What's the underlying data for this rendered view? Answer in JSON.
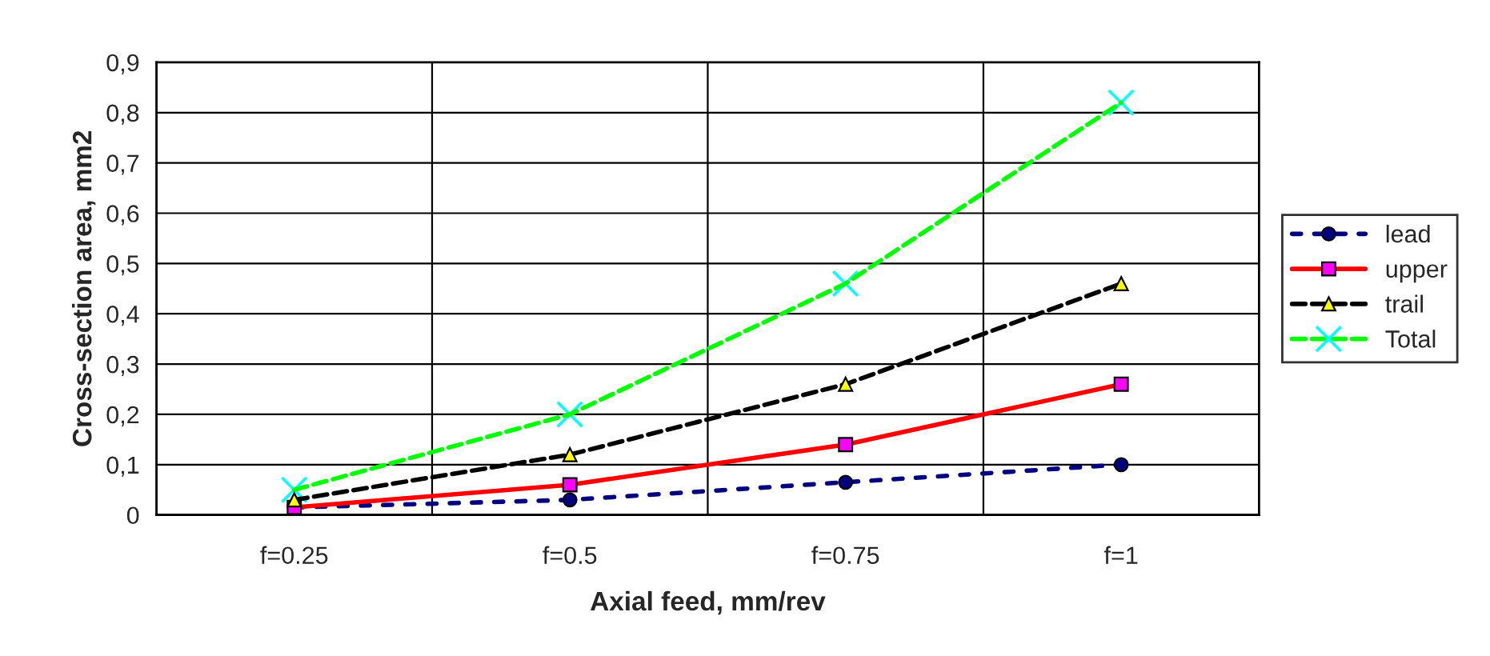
{
  "chart_data": {
    "type": "line",
    "xlabel": "Axial feed, mm/rev",
    "ylabel": "Cross-section area, mm2",
    "categories": [
      "f=0.25",
      "f=0.5",
      "f=0.75",
      "f=1"
    ],
    "series": [
      {
        "name": "lead",
        "color": "#000080",
        "values": [
          0.015,
          0.03,
          0.065,
          0.1
        ],
        "marker": "circle",
        "line_style": "dotted"
      },
      {
        "name": "upper",
        "color": "#ff0000",
        "values": [
          0.015,
          0.06,
          0.14,
          0.26
        ],
        "marker": "square",
        "line_style": "solid"
      },
      {
        "name": "trail",
        "color": "#000000",
        "values": [
          0.03,
          0.12,
          0.26,
          0.46
        ],
        "marker": "triangle",
        "line_style": "dashed"
      },
      {
        "name": "Total",
        "color": "#00ff00",
        "values": [
          0.05,
          0.2,
          0.46,
          0.82
        ],
        "marker": "cross",
        "line_style": "dashed"
      }
    ],
    "ylim": [
      0,
      0.9
    ],
    "yticks": [
      0,
      {
        "value": 0.1,
        "label": "0,1"
      },
      {
        "value": 0.2,
        "label": "0,2"
      },
      {
        "value": 0.3,
        "label": "0,3"
      },
      {
        "value": 0.4,
        "label": "0,4"
      },
      {
        "value": 0.5,
        "label": "0,5"
      },
      {
        "value": 0.6,
        "label": "0,6"
      },
      {
        "value": 0.7,
        "label": "0,7"
      },
      {
        "value": 0.8,
        "label": "0,8"
      },
      {
        "value": 0.9,
        "label": "0,9"
      }
    ],
    "grid": true,
    "legend": "right"
  }
}
